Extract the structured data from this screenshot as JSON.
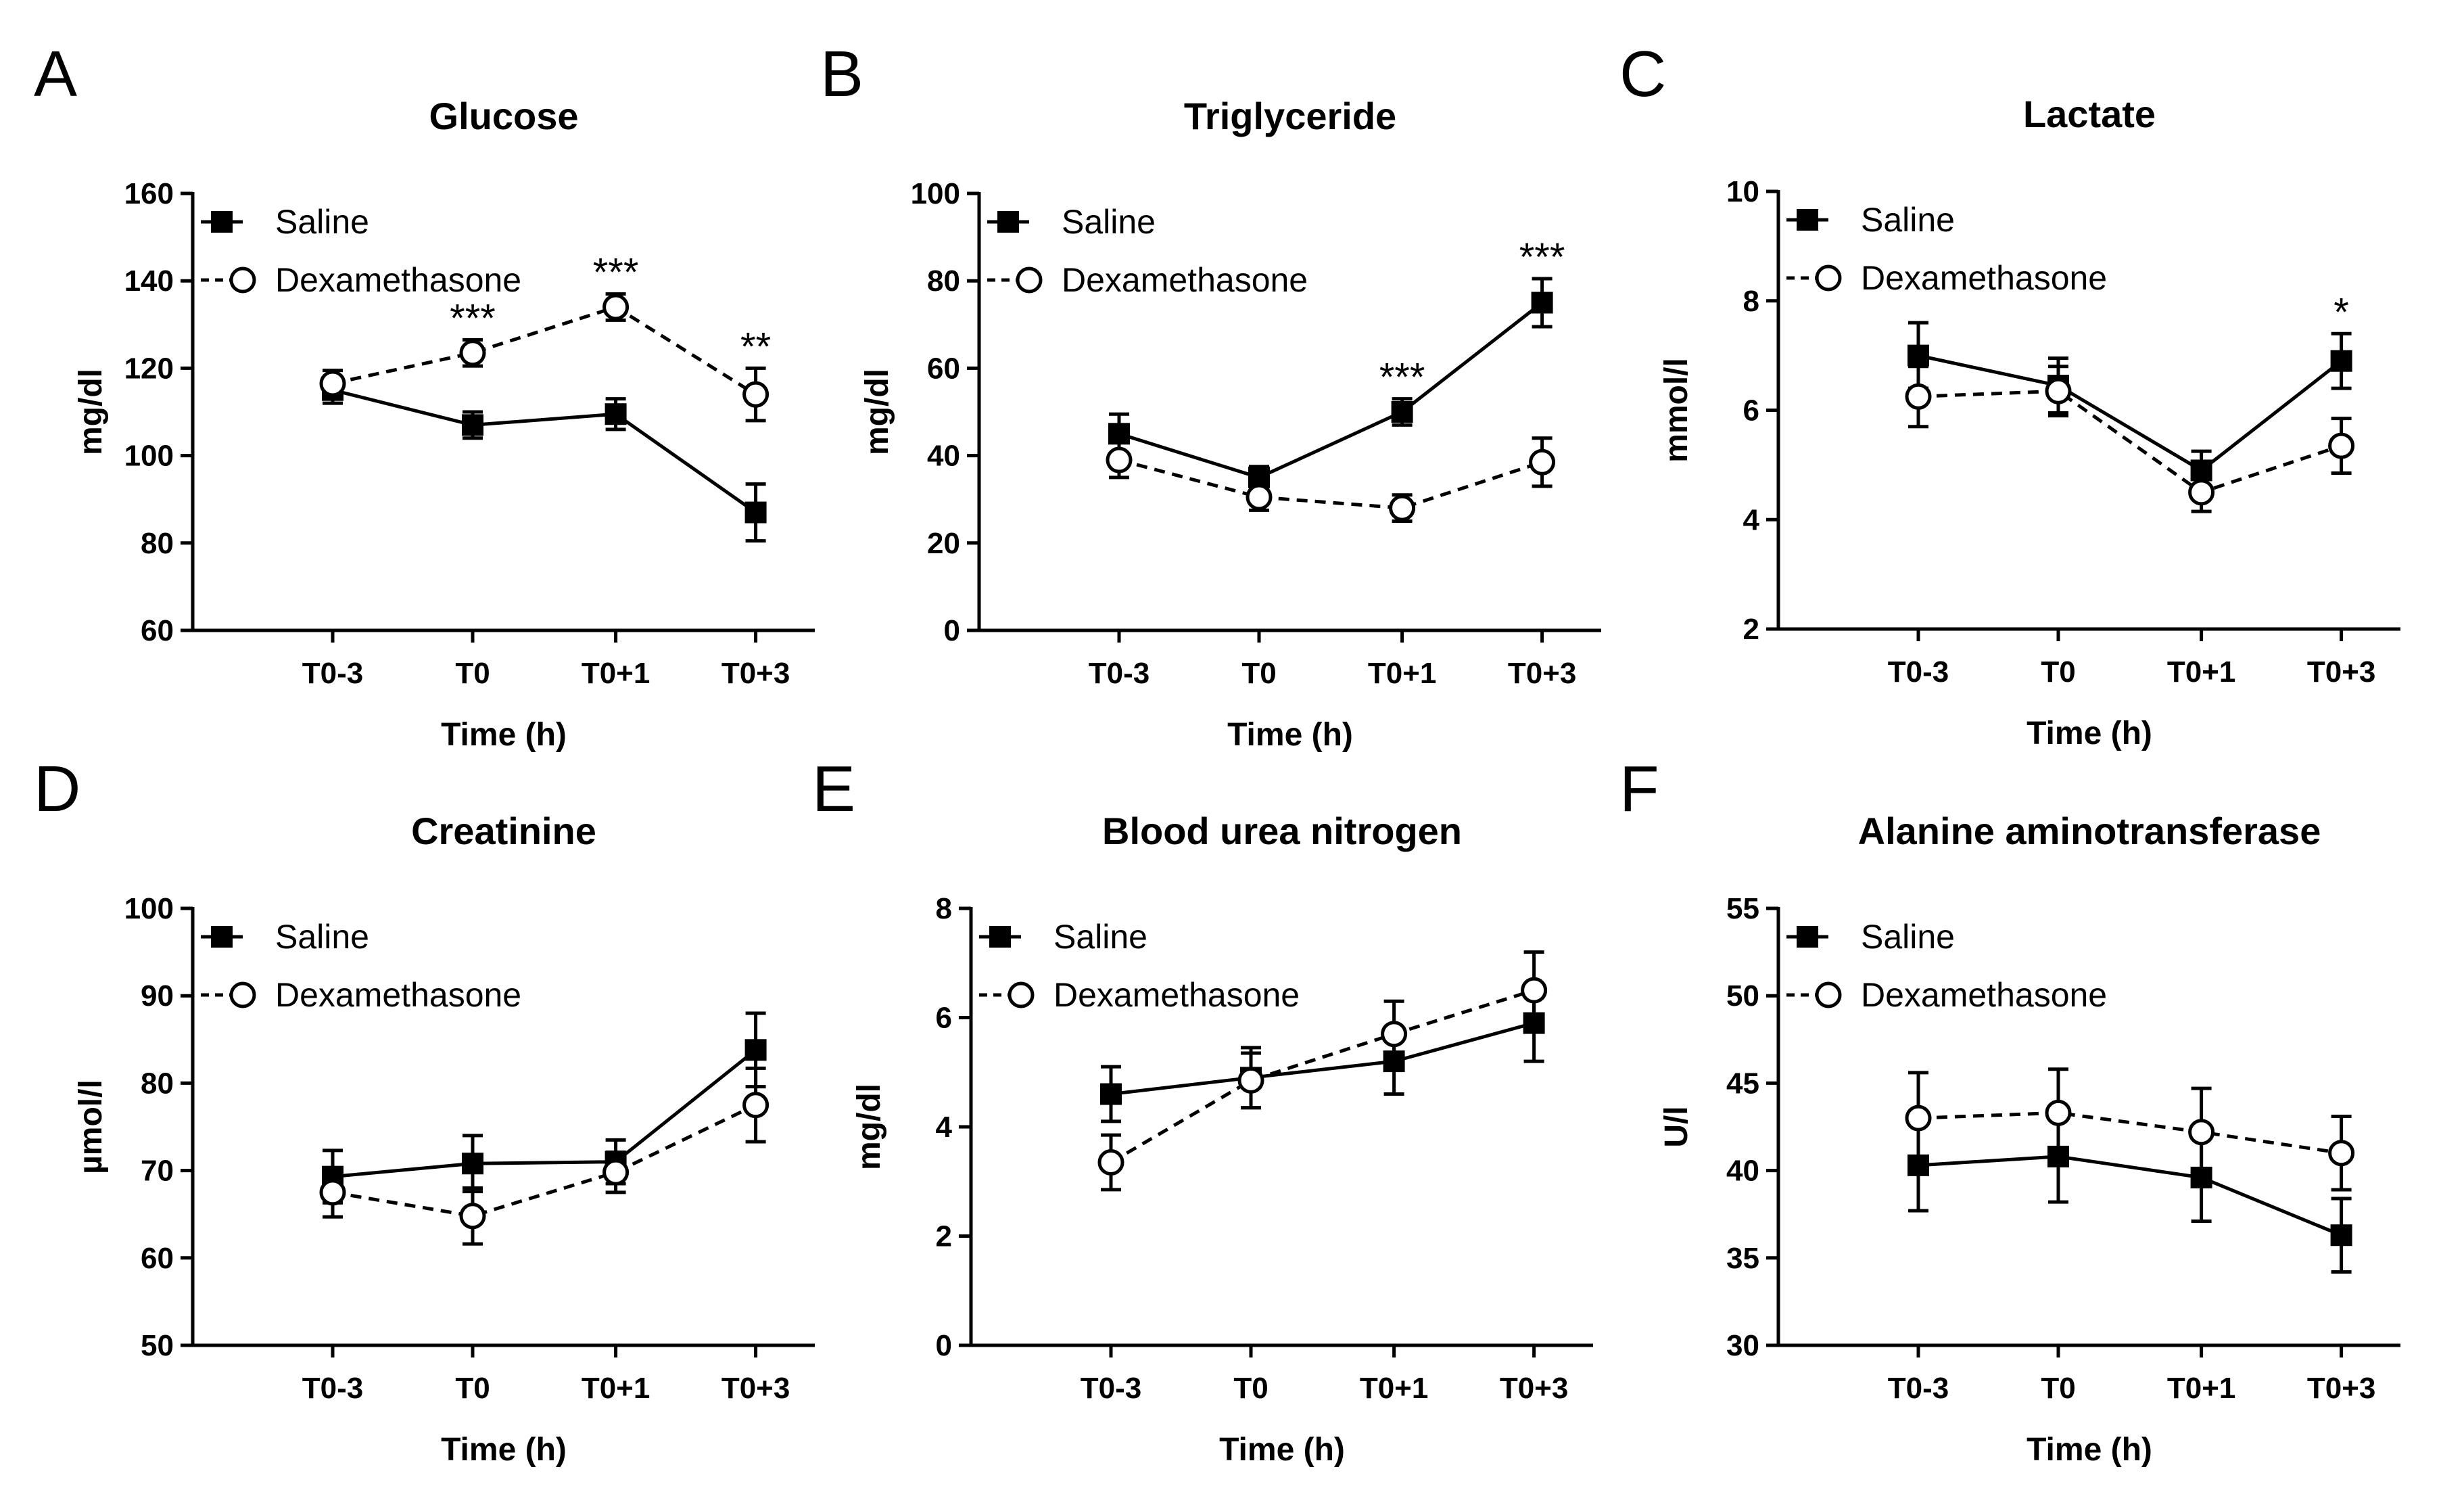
{
  "figure": {
    "chart_data": [
      {
        "panel": "A",
        "type": "line",
        "title": "Glucose",
        "xlabel": "Time (h)",
        "ylabel": "mg/dl",
        "categories": [
          "T0-3",
          "T0",
          "T0+1",
          "T0+3"
        ],
        "ylim": [
          60,
          160
        ],
        "yticks": [
          60,
          80,
          100,
          120,
          140,
          160
        ],
        "ytick_labels": [
          "60",
          "80",
          "100",
          "120",
          "140",
          "160"
        ],
        "series": [
          {
            "name": "Saline",
            "values": [
              115,
              107,
              109.5,
              87
            ],
            "errors": [
              3,
              3,
              3.5,
              6.5
            ]
          },
          {
            "name": "Dexamethasone",
            "values": [
              116.5,
              123.5,
              134,
              114
            ],
            "errors": [
              3,
              3,
              3,
              6
            ]
          }
        ],
        "annotations": [
          {
            "category": 1,
            "text": "***"
          },
          {
            "category": 2,
            "text": "***"
          },
          {
            "category": 3,
            "text": "**"
          }
        ],
        "legend": "top-left"
      },
      {
        "panel": "B",
        "type": "line",
        "title": "Triglyceride",
        "xlabel": "Time (h)",
        "ylabel": "mg/dl",
        "categories": [
          "T0-3",
          "T0",
          "T0+1",
          "T0+3"
        ],
        "ylim": [
          0,
          100
        ],
        "yticks": [
          0,
          20,
          40,
          60,
          80,
          100
        ],
        "ytick_labels": [
          "0",
          "20",
          "40",
          "60",
          "80",
          "100"
        ],
        "series": [
          {
            "name": "Saline",
            "values": [
              45,
              35,
              50,
              75
            ],
            "errors": [
              4.5,
              2.5,
              3,
              5.5
            ]
          },
          {
            "name": "Dexamethasone",
            "values": [
              39,
              30.5,
              28,
              38.5
            ],
            "errors": [
              4,
              3,
              3,
              5.5
            ]
          }
        ],
        "annotations": [
          {
            "category": 2,
            "text": "***"
          },
          {
            "category": 3,
            "text": "***"
          }
        ],
        "legend": "top-left"
      },
      {
        "panel": "C",
        "type": "line",
        "title": "Lactate",
        "xlabel": "Time (h)",
        "ylabel": "mmol/l",
        "categories": [
          "T0-3",
          "T0",
          "T0+1",
          "T0+3"
        ],
        "ylim": [
          2,
          10
        ],
        "yticks": [
          2,
          4,
          6,
          8,
          10
        ],
        "ytick_labels": [
          "2",
          "4",
          "6",
          "8",
          "10"
        ],
        "series": [
          {
            "name": "Saline",
            "values": [
              7,
              6.45,
              4.9,
              6.9
            ],
            "errors": [
              0.6,
              0.5,
              0.35,
              0.5
            ]
          },
          {
            "name": "Dexamethasone",
            "values": [
              6.25,
              6.35,
              4.5,
              5.35
            ],
            "errors": [
              0.55,
              0.45,
              0.35,
              0.5
            ]
          }
        ],
        "annotations": [
          {
            "category": 3,
            "text": "*"
          }
        ],
        "legend": "top-left"
      },
      {
        "panel": "D",
        "type": "line",
        "title": "Creatinine",
        "xlabel": "Time (h)",
        "ylabel": "µmol/l",
        "categories": [
          "T0-3",
          "T0",
          "T0+1",
          "T0+3"
        ],
        "ylim": [
          50,
          100
        ],
        "yticks": [
          50,
          60,
          70,
          80,
          90,
          100
        ],
        "ytick_labels": [
          "50",
          "60",
          "70",
          "80",
          "90",
          "100"
        ],
        "series": [
          {
            "name": "Saline",
            "values": [
              69.3,
              70.8,
              71,
              83.8
            ],
            "errors": [
              3,
              3.2,
              2.5,
              4.2
            ]
          },
          {
            "name": "Dexamethasone",
            "values": [
              67.5,
              64.8,
              69.8,
              77.5
            ],
            "errors": [
              2.8,
              3.2,
              2.3,
              4.2
            ]
          }
        ],
        "annotations": [],
        "legend": "top-left"
      },
      {
        "panel": "E",
        "type": "line",
        "title": "Blood urea nitrogen",
        "xlabel": "Time (h)",
        "ylabel": "mg/dl",
        "categories": [
          "T0-3",
          "T0",
          "T0+1",
          "T0+3"
        ],
        "ylim": [
          0,
          8
        ],
        "yticks": [
          0,
          2,
          4,
          6,
          8
        ],
        "ytick_labels": [
          "0",
          "2",
          "4",
          "6",
          "8"
        ],
        "series": [
          {
            "name": "Saline",
            "values": [
              4.6,
              4.9,
              5.2,
              5.9
            ],
            "errors": [
              0.5,
              0.55,
              0.6,
              0.7
            ]
          },
          {
            "name": "Dexamethasone",
            "values": [
              3.35,
              4.85,
              5.7,
              6.5
            ],
            "errors": [
              0.5,
              0.5,
              0.6,
              0.7
            ]
          }
        ],
        "annotations": [],
        "legend": "top-left"
      },
      {
        "panel": "F",
        "type": "line",
        "title": "Alanine aminotransferase",
        "xlabel": "Time (h)",
        "ylabel": "U/l",
        "categories": [
          "T0-3",
          "T0",
          "T0+1",
          "T0+3"
        ],
        "ylim": [
          30,
          55
        ],
        "yticks": [
          30,
          35,
          40,
          45,
          50,
          55
        ],
        "ytick_labels": [
          "30",
          "35",
          "40",
          "45",
          "50",
          "55"
        ],
        "series": [
          {
            "name": "Saline",
            "values": [
              40.3,
              40.8,
              39.6,
              36.3
            ],
            "errors": [
              2.6,
              2.6,
              2.5,
              2.1
            ]
          },
          {
            "name": "Dexamethasone",
            "values": [
              43,
              43.3,
              42.2,
              41
            ],
            "errors": [
              2.6,
              2.5,
              2.5,
              2.1
            ]
          }
        ],
        "annotations": [],
        "legend": "top-left"
      }
    ]
  }
}
